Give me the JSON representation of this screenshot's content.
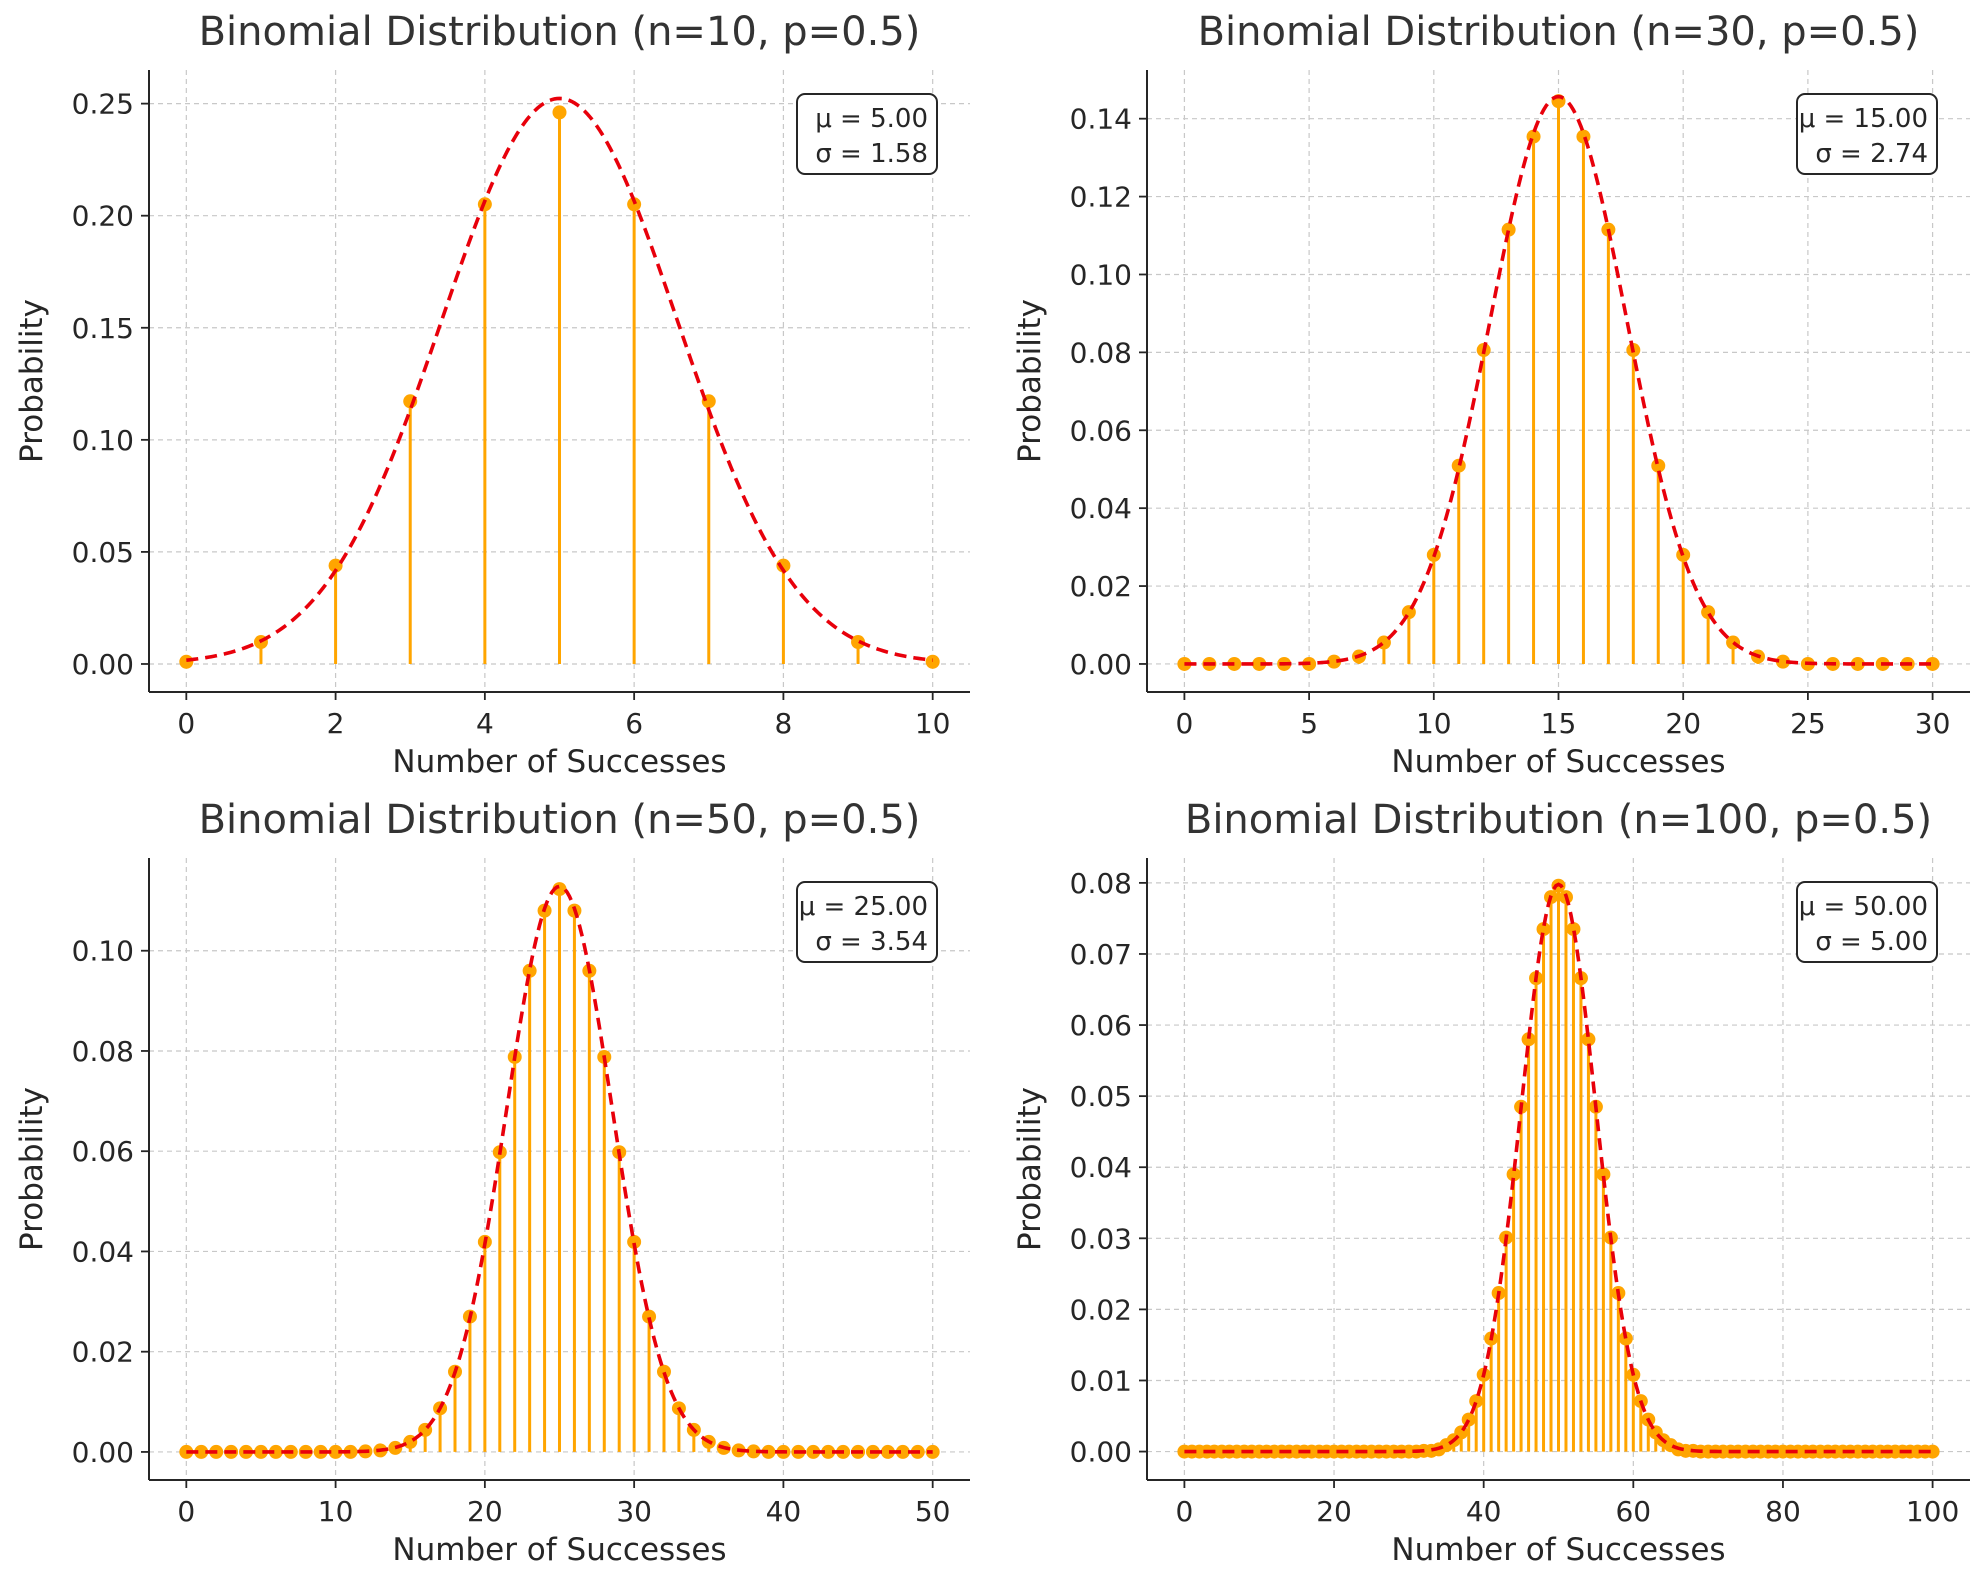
{
  "colors": {
    "stem": "#ffa500",
    "marker": "#ffa500",
    "curve": "#e8000b",
    "grid": "#c8c8c8",
    "axis": "#262626"
  },
  "chart_data": [
    {
      "type": "stem",
      "title": "Binomial Distribution (n=10, p=0.5)",
      "xlabel": "Number of Successes",
      "ylabel": "Probability",
      "n": 10,
      "p": 0.5,
      "x": [
        0,
        1,
        2,
        3,
        4,
        5,
        6,
        7,
        8,
        9,
        10
      ],
      "values": [
        0.001,
        0.0098,
        0.0439,
        0.1172,
        0.2051,
        0.2461,
        0.2051,
        0.1172,
        0.0439,
        0.0098,
        0.001
      ],
      "overlay": {
        "type": "line",
        "style": "dashed",
        "description": "normal approximation"
      },
      "xticks": [
        0,
        2,
        4,
        6,
        8,
        10
      ],
      "xtick_labels": [
        "0",
        "2",
        "4",
        "6",
        "8",
        "10"
      ],
      "yticks": [
        0,
        0.05,
        0.1,
        0.15,
        0.2,
        0.25
      ],
      "ytick_labels": [
        "0.00",
        "0.05",
        "0.10",
        "0.15",
        "0.20",
        "0.25"
      ],
      "xlim": [
        -0.5,
        10.5
      ],
      "ylim": [
        -0.0125,
        0.265
      ],
      "grid": true,
      "stats": {
        "mu": "5.00",
        "sigma": "1.58",
        "mu_text": "μ = 5.00",
        "sigma_text": "σ = 1.58",
        "placement": "top-right"
      }
    },
    {
      "type": "stem",
      "title": "Binomial Distribution (n=30, p=0.5)",
      "xlabel": "Number of Successes",
      "ylabel": "Probability",
      "n": 30,
      "p": 0.5,
      "x": [
        0,
        1,
        2,
        3,
        4,
        5,
        6,
        7,
        8,
        9,
        10,
        11,
        12,
        13,
        14,
        15,
        16,
        17,
        18,
        19,
        20,
        21,
        22,
        23,
        24,
        25,
        26,
        27,
        28,
        29,
        30
      ],
      "values": [
        0,
        0,
        0,
        0,
        0,
        0,
        0.0006,
        0.0019,
        0.0055,
        0.0133,
        0.028,
        0.0509,
        0.0806,
        0.1115,
        0.1354,
        0.1445,
        0.1354,
        0.1115,
        0.0806,
        0.0509,
        0.028,
        0.0133,
        0.0055,
        0.0019,
        0.0006,
        0,
        0,
        0,
        0,
        0,
        0
      ],
      "overlay": {
        "type": "line",
        "style": "dashed",
        "description": "normal approximation"
      },
      "xticks": [
        0,
        5,
        10,
        15,
        20,
        25,
        30
      ],
      "xtick_labels": [
        "0",
        "5",
        "10",
        "15",
        "20",
        "25",
        "30"
      ],
      "yticks": [
        0,
        0.02,
        0.04,
        0.06,
        0.08,
        0.1,
        0.12,
        0.14
      ],
      "ytick_labels": [
        "0.00",
        "0.02",
        "0.04",
        "0.06",
        "0.08",
        "0.10",
        "0.12",
        "0.14"
      ],
      "xlim": [
        -1.5,
        31.5
      ],
      "ylim": [
        -0.0072,
        0.1525
      ],
      "grid": true,
      "stats": {
        "mu": "15.00",
        "sigma": "2.74",
        "mu_text": "μ = 15.00",
        "sigma_text": "σ = 2.74",
        "placement": "top-right"
      }
    },
    {
      "type": "stem",
      "title": "Binomial Distribution (n=50, p=0.5)",
      "xlabel": "Number of Successes",
      "ylabel": "Probability",
      "n": 50,
      "p": 0.5,
      "x": [
        0,
        1,
        2,
        3,
        4,
        5,
        6,
        7,
        8,
        9,
        10,
        11,
        12,
        13,
        14,
        15,
        16,
        17,
        18,
        19,
        20,
        21,
        22,
        23,
        24,
        25,
        26,
        27,
        28,
        29,
        30,
        31,
        32,
        33,
        34,
        35,
        36,
        37,
        38,
        39,
        40,
        41,
        42,
        43,
        44,
        45,
        46,
        47,
        48,
        49,
        50
      ],
      "values": [
        0,
        0,
        0,
        0,
        0,
        0,
        0,
        0,
        0,
        0,
        0,
        0,
        0.0001,
        0.0003,
        0.0008,
        0.002,
        0.0044,
        0.0087,
        0.016,
        0.027,
        0.0419,
        0.0598,
        0.0788,
        0.096,
        0.108,
        0.1123,
        0.108,
        0.096,
        0.0788,
        0.0598,
        0.0419,
        0.027,
        0.016,
        0.0087,
        0.0044,
        0.002,
        0.0008,
        0.0003,
        0.0001,
        0,
        0,
        0,
        0,
        0,
        0,
        0,
        0,
        0,
        0,
        0,
        0
      ],
      "overlay": {
        "type": "line",
        "style": "dashed",
        "description": "normal approximation"
      },
      "xticks": [
        0,
        10,
        20,
        30,
        40,
        50
      ],
      "xtick_labels": [
        "0",
        "10",
        "20",
        "30",
        "40",
        "50"
      ],
      "yticks": [
        0,
        0.02,
        0.04,
        0.06,
        0.08,
        0.1
      ],
      "ytick_labels": [
        "0.00",
        "0.02",
        "0.04",
        "0.06",
        "0.08",
        "0.10"
      ],
      "xlim": [
        -2.5,
        52.5
      ],
      "ylim": [
        -0.0056,
        0.1185
      ],
      "grid": true,
      "stats": {
        "mu": "25.00",
        "sigma": "3.54",
        "mu_text": "μ = 25.00",
        "sigma_text": "σ = 3.54",
        "placement": "top-right"
      }
    },
    {
      "type": "stem",
      "title": "Binomial Distribution (n=100, p=0.5)",
      "xlabel": "Number of Successes",
      "ylabel": "Probability",
      "n": 100,
      "p": 0.5,
      "x": "0–100 (every integer)",
      "values": [
        0,
        0,
        0,
        0,
        0,
        0,
        0,
        0,
        0,
        0,
        0,
        0,
        0,
        0,
        0,
        0,
        0,
        0,
        0,
        0,
        0,
        0,
        0,
        0,
        0,
        0,
        0,
        0,
        0,
        0,
        0,
        0,
        0.0001,
        0.0001,
        0.0003,
        0.0009,
        0.0016,
        0.0027,
        0.0045,
        0.0071,
        0.0108,
        0.0159,
        0.0223,
        0.0301,
        0.039,
        0.0485,
        0.058,
        0.0666,
        0.0735,
        0.078,
        0.0796,
        0.078,
        0.0735,
        0.0666,
        0.058,
        0.0485,
        0.039,
        0.0301,
        0.0223,
        0.0159,
        0.0108,
        0.0071,
        0.0045,
        0.0027,
        0.0016,
        0.0009,
        0.0003,
        0.0001,
        0.0001,
        0,
        0,
        0,
        0,
        0,
        0,
        0,
        0,
        0,
        0,
        0,
        0,
        0,
        0,
        0,
        0,
        0,
        0,
        0,
        0,
        0,
        0,
        0,
        0,
        0,
        0,
        0,
        0,
        0,
        0,
        0,
        0
      ],
      "overlay": {
        "type": "line",
        "style": "dashed",
        "description": "normal approximation"
      },
      "xticks": [
        0,
        20,
        40,
        60,
        80,
        100
      ],
      "xtick_labels": [
        "0",
        "20",
        "40",
        "60",
        "80",
        "100"
      ],
      "yticks": [
        0,
        0.01,
        0.02,
        0.03,
        0.04,
        0.05,
        0.06,
        0.07,
        0.08
      ],
      "ytick_labels": [
        "0.00",
        "0.01",
        "0.02",
        "0.03",
        "0.04",
        "0.05",
        "0.06",
        "0.07",
        "0.08"
      ],
      "xlim": [
        -5,
        105
      ],
      "ylim": [
        -0.004,
        0.0835
      ],
      "grid": true,
      "stats": {
        "mu": "50.00",
        "sigma": "5.00",
        "mu_text": "μ = 50.00",
        "sigma_text": "σ = 5.00",
        "placement": "top-right"
      }
    }
  ]
}
